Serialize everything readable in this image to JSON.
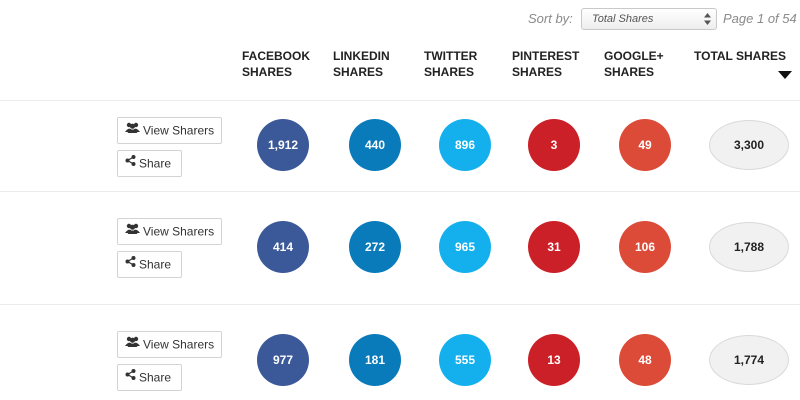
{
  "sort": {
    "label": "Sort by:",
    "selected": "Total Shares",
    "page_info": "Page 1 of 54"
  },
  "columns": [
    {
      "line1": "FACEBOOK",
      "line2": "SHARES"
    },
    {
      "line1": "LINKEDIN",
      "line2": "SHARES"
    },
    {
      "line1": "TWITTER",
      "line2": "SHARES"
    },
    {
      "line1": "PINTEREST",
      "line2": "SHARES"
    },
    {
      "line1": "GOOGLE+",
      "line2": "SHARES"
    },
    {
      "line1": "TOTAL SHARES",
      "line2": ""
    }
  ],
  "buttons": {
    "view_sharers": "View Sharers",
    "share": "Share"
  },
  "colors": {
    "facebook": "#3b5998",
    "linkedin": "#0a7bba",
    "twitter": "#14b0ee",
    "pinterest": "#cb2027",
    "googleplus": "#dc4a38",
    "total_bg": "#f1f1f1"
  },
  "rows": [
    {
      "facebook": "1,912",
      "linkedin": "440",
      "twitter": "896",
      "pinterest": "3",
      "googleplus": "49",
      "total": "3,300"
    },
    {
      "facebook": "414",
      "linkedin": "272",
      "twitter": "965",
      "pinterest": "31",
      "googleplus": "106",
      "total": "1,788"
    },
    {
      "facebook": "977",
      "linkedin": "181",
      "twitter": "555",
      "pinterest": "13",
      "googleplus": "48",
      "total": "1,774"
    }
  ]
}
